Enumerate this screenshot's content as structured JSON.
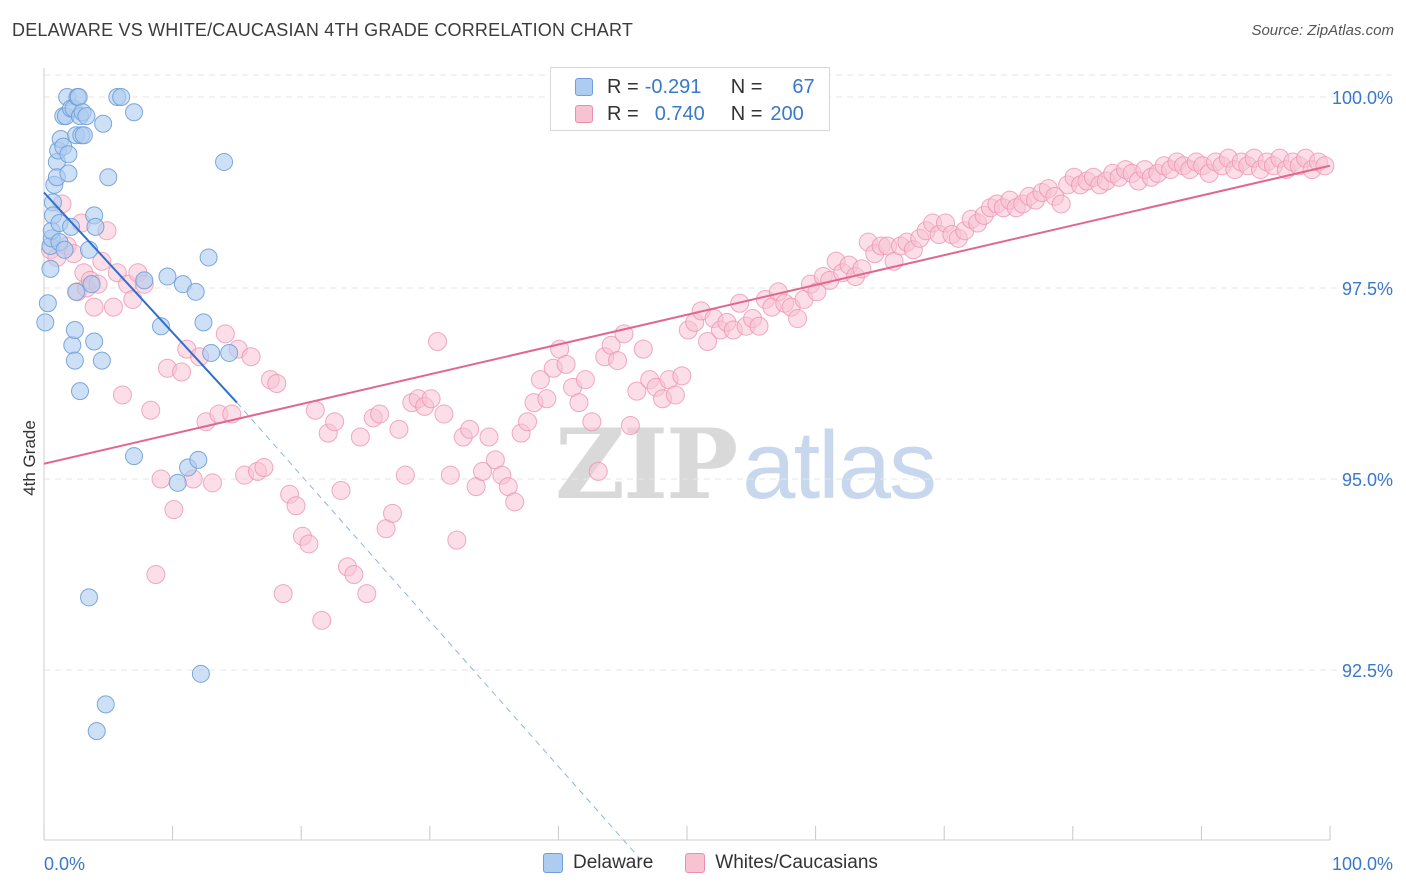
{
  "title": "DELAWARE VS WHITE/CAUCASIAN 4TH GRADE CORRELATION CHART",
  "source": "Source: ZipAtlas.com",
  "watermark": {
    "zip": "ZIP",
    "atlas": "atlas"
  },
  "legend": {
    "rows": [
      {
        "r_label": "R =",
        "r_value": "-0.291",
        "n_label": "N =",
        "n_value": "67",
        "fill": "#aecbf0",
        "stroke": "#6f9fd8"
      },
      {
        "r_label": "R =",
        "r_value": "0.740",
        "n_label": "N = ",
        "n_value": "200",
        "fill": "#f7c3d3",
        "stroke": "#ec8fad"
      }
    ]
  },
  "bottom_legend": [
    {
      "label": "Delaware",
      "fill": "#aecbf0",
      "stroke": "#6f9fd8"
    },
    {
      "label": "Whites/Caucasians",
      "fill": "#f7c3d3",
      "stroke": "#ec8fad"
    }
  ],
  "chart_data": {
    "type": "scatter",
    "title": "DELAWARE VS WHITE/CAUCASIAN 4TH GRADE CORRELATION CHART",
    "xlabel": "",
    "ylabel": "4th Grade",
    "xlim": [
      0,
      100
    ],
    "ylim": [
      90.0,
      100.2
    ],
    "x_tick_labels": [
      "0.0%",
      "100.0%"
    ],
    "y_ticks": [
      100.0,
      97.5,
      95.0,
      92.5
    ],
    "y_tick_labels": [
      "100.0%",
      "97.5%",
      "95.0%",
      "92.5%"
    ],
    "grid": true,
    "colors": {
      "delaware": "#6f9fd8",
      "delaware_fill": "#aecbf0",
      "delaware_line": "#2f6fce",
      "whites": "#ec8fad",
      "whites_fill": "#f7c3d3",
      "whites_line": "#e0688f",
      "tick_label": "#3a78c9"
    },
    "series": [
      {
        "name": "Delaware",
        "r": -0.291,
        "n": 67,
        "trend": {
          "x": [
            0,
            15
          ],
          "y": [
            98.75,
            96.0
          ]
        },
        "trend_extension": {
          "x": [
            15,
            46.5
          ],
          "y": [
            96.0,
            90.0
          ]
        },
        "points": [
          [
            0.1,
            97.05
          ],
          [
            0.3,
            97.3
          ],
          [
            0.5,
            97.75
          ],
          [
            0.5,
            98.05
          ],
          [
            0.6,
            98.15
          ],
          [
            0.6,
            98.25
          ],
          [
            0.7,
            98.62
          ],
          [
            0.7,
            98.45
          ],
          [
            0.8,
            98.85
          ],
          [
            1.0,
            99.15
          ],
          [
            1.0,
            98.95
          ],
          [
            1.1,
            99.3
          ],
          [
            1.2,
            98.35
          ],
          [
            1.2,
            98.1
          ],
          [
            1.3,
            99.45
          ],
          [
            1.5,
            99.35
          ],
          [
            1.5,
            99.75
          ],
          [
            1.6,
            98.0
          ],
          [
            1.9,
            99.0
          ],
          [
            1.8,
            100.0
          ],
          [
            1.7,
            99.75
          ],
          [
            1.9,
            99.25
          ],
          [
            2.1,
            99.85
          ],
          [
            2.1,
            98.3
          ],
          [
            2.3,
            99.85
          ],
          [
            2.2,
            96.75
          ],
          [
            2.4,
            96.55
          ],
          [
            2.4,
            96.95
          ],
          [
            2.5,
            97.45
          ],
          [
            2.6,
            100.0
          ],
          [
            2.5,
            99.5
          ],
          [
            2.7,
            100.0
          ],
          [
            2.8,
            99.75
          ],
          [
            2.9,
            99.5
          ],
          [
            3.0,
            99.8
          ],
          [
            2.8,
            96.15
          ],
          [
            3.1,
            99.5
          ],
          [
            3.3,
            99.75
          ],
          [
            3.5,
            98.0
          ],
          [
            3.7,
            97.55
          ],
          [
            3.5,
            93.45
          ],
          [
            3.9,
            96.8
          ],
          [
            3.9,
            98.45
          ],
          [
            4.0,
            98.3
          ],
          [
            4.1,
            91.7
          ],
          [
            4.5,
            96.55
          ],
          [
            4.8,
            92.05
          ],
          [
            4.6,
            99.65
          ],
          [
            5.0,
            98.95
          ],
          [
            5.7,
            100.0
          ],
          [
            6.0,
            100.0
          ],
          [
            7.0,
            99.8
          ],
          [
            7.0,
            95.3
          ],
          [
            7.8,
            97.6
          ],
          [
            9.1,
            97.0
          ],
          [
            9.6,
            97.65
          ],
          [
            10.4,
            94.95
          ],
          [
            10.8,
            97.55
          ],
          [
            11.2,
            95.15
          ],
          [
            11.8,
            97.45
          ],
          [
            12.0,
            95.25
          ],
          [
            12.2,
            92.45
          ],
          [
            12.4,
            97.05
          ],
          [
            13.0,
            96.65
          ],
          [
            12.8,
            97.9
          ],
          [
            14.0,
            99.15
          ],
          [
            14.4,
            96.65
          ]
        ]
      },
      {
        "name": "Whites/Caucasians",
        "r": 0.74,
        "n": 200,
        "trend": {
          "x": [
            0,
            100
          ],
          "y": [
            95.2,
            99.1
          ]
        },
        "points": [
          [
            0.5,
            98.0
          ],
          [
            1.0,
            97.9
          ],
          [
            1.4,
            98.6
          ],
          [
            1.8,
            98.05
          ],
          [
            2.3,
            97.95
          ],
          [
            2.6,
            97.45
          ],
          [
            2.9,
            98.35
          ],
          [
            3.1,
            97.7
          ],
          [
            3.3,
            97.5
          ],
          [
            3.6,
            97.6
          ],
          [
            3.9,
            97.25
          ],
          [
            4.2,
            97.55
          ],
          [
            4.5,
            97.85
          ],
          [
            4.9,
            98.25
          ],
          [
            5.4,
            97.25
          ],
          [
            5.7,
            97.7
          ],
          [
            6.1,
            96.1
          ],
          [
            6.5,
            97.55
          ],
          [
            6.9,
            97.35
          ],
          [
            7.3,
            97.7
          ],
          [
            7.8,
            97.55
          ],
          [
            8.3,
            95.9
          ],
          [
            8.7,
            93.75
          ],
          [
            9.1,
            95.0
          ],
          [
            9.6,
            96.45
          ],
          [
            10.1,
            94.6
          ],
          [
            10.7,
            96.4
          ],
          [
            11.1,
            96.7
          ],
          [
            11.6,
            95.0
          ],
          [
            12.1,
            96.6
          ],
          [
            12.6,
            95.75
          ],
          [
            13.1,
            94.95
          ],
          [
            13.6,
            95.85
          ],
          [
            14.1,
            96.9
          ],
          [
            14.6,
            95.85
          ],
          [
            15.1,
            96.7
          ],
          [
            15.6,
            95.05
          ],
          [
            16.1,
            96.6
          ],
          [
            16.6,
            95.1
          ],
          [
            17.1,
            95.15
          ],
          [
            17.6,
            96.3
          ],
          [
            18.1,
            96.25
          ],
          [
            18.6,
            93.5
          ],
          [
            19.1,
            94.8
          ],
          [
            19.6,
            94.65
          ],
          [
            20.1,
            94.25
          ],
          [
            20.6,
            94.15
          ],
          [
            21.1,
            95.9
          ],
          [
            21.6,
            93.15
          ],
          [
            22.1,
            95.6
          ],
          [
            22.6,
            95.75
          ],
          [
            23.1,
            94.85
          ],
          [
            23.6,
            93.85
          ],
          [
            24.1,
            93.75
          ],
          [
            24.6,
            95.55
          ],
          [
            25.1,
            93.5
          ],
          [
            25.6,
            95.8
          ],
          [
            26.1,
            95.85
          ],
          [
            26.6,
            94.35
          ],
          [
            27.1,
            94.55
          ],
          [
            27.6,
            95.65
          ],
          [
            28.1,
            95.05
          ],
          [
            28.6,
            96.0
          ],
          [
            29.1,
            96.05
          ],
          [
            29.6,
            95.95
          ],
          [
            30.1,
            96.05
          ],
          [
            30.6,
            96.8
          ],
          [
            31.1,
            95.85
          ],
          [
            31.6,
            95.05
          ],
          [
            32.1,
            94.2
          ],
          [
            32.6,
            95.55
          ],
          [
            33.1,
            95.65
          ],
          [
            33.6,
            94.9
          ],
          [
            34.1,
            95.1
          ],
          [
            34.6,
            95.55
          ],
          [
            35.1,
            95.25
          ],
          [
            35.6,
            95.05
          ],
          [
            36.1,
            94.9
          ],
          [
            36.6,
            94.7
          ],
          [
            37.1,
            95.6
          ],
          [
            37.6,
            95.75
          ],
          [
            38.1,
            96.0
          ],
          [
            38.6,
            96.3
          ],
          [
            39.1,
            96.05
          ],
          [
            39.6,
            96.45
          ],
          [
            40.1,
            96.7
          ],
          [
            40.6,
            96.5
          ],
          [
            41.1,
            96.2
          ],
          [
            41.6,
            96.0
          ],
          [
            42.1,
            96.3
          ],
          [
            42.6,
            95.75
          ],
          [
            43.1,
            95.1
          ],
          [
            43.6,
            96.6
          ],
          [
            44.1,
            96.75
          ],
          [
            44.6,
            96.55
          ],
          [
            45.1,
            96.9
          ],
          [
            45.6,
            95.7
          ],
          [
            46.1,
            96.15
          ],
          [
            46.6,
            96.7
          ],
          [
            47.1,
            96.3
          ],
          [
            47.6,
            96.2
          ],
          [
            48.1,
            96.05
          ],
          [
            48.6,
            96.3
          ],
          [
            49.1,
            96.1
          ],
          [
            49.6,
            96.35
          ],
          [
            50.1,
            96.95
          ],
          [
            50.6,
            97.05
          ],
          [
            51.1,
            97.2
          ],
          [
            51.6,
            96.8
          ],
          [
            52.1,
            97.1
          ],
          [
            52.6,
            96.95
          ],
          [
            53.1,
            97.05
          ],
          [
            53.6,
            96.95
          ],
          [
            54.1,
            97.3
          ],
          [
            54.6,
            97.0
          ],
          [
            55.1,
            97.1
          ],
          [
            55.6,
            97.0
          ],
          [
            56.1,
            97.35
          ],
          [
            56.6,
            97.25
          ],
          [
            57.1,
            97.45
          ],
          [
            57.6,
            97.3
          ],
          [
            58.1,
            97.25
          ],
          [
            58.6,
            97.1
          ],
          [
            59.1,
            97.35
          ],
          [
            59.6,
            97.55
          ],
          [
            60.1,
            97.45
          ],
          [
            60.6,
            97.65
          ],
          [
            61.1,
            97.6
          ],
          [
            61.6,
            97.85
          ],
          [
            62.1,
            97.7
          ],
          [
            62.6,
            97.8
          ],
          [
            63.1,
            97.65
          ],
          [
            63.6,
            97.75
          ],
          [
            64.1,
            98.1
          ],
          [
            64.6,
            97.95
          ],
          [
            65.1,
            98.05
          ],
          [
            65.6,
            98.05
          ],
          [
            66.1,
            97.85
          ],
          [
            66.6,
            98.05
          ],
          [
            67.1,
            98.1
          ],
          [
            67.6,
            98.0
          ],
          [
            68.1,
            98.15
          ],
          [
            68.6,
            98.25
          ],
          [
            69.1,
            98.35
          ],
          [
            69.6,
            98.2
          ],
          [
            70.1,
            98.35
          ],
          [
            70.6,
            98.2
          ],
          [
            71.1,
            98.15
          ],
          [
            71.6,
            98.25
          ],
          [
            72.1,
            98.4
          ],
          [
            72.6,
            98.35
          ],
          [
            73.1,
            98.45
          ],
          [
            73.6,
            98.55
          ],
          [
            74.1,
            98.6
          ],
          [
            74.6,
            98.55
          ],
          [
            75.1,
            98.65
          ],
          [
            75.6,
            98.55
          ],
          [
            76.1,
            98.6
          ],
          [
            76.6,
            98.7
          ],
          [
            77.1,
            98.65
          ],
          [
            77.6,
            98.75
          ],
          [
            78.1,
            98.8
          ],
          [
            78.6,
            98.7
          ],
          [
            79.1,
            98.6
          ],
          [
            79.6,
            98.85
          ],
          [
            80.1,
            98.95
          ],
          [
            80.6,
            98.85
          ],
          [
            81.1,
            98.9
          ],
          [
            81.6,
            98.95
          ],
          [
            82.1,
            98.85
          ],
          [
            82.6,
            98.9
          ],
          [
            83.1,
            99.0
          ],
          [
            83.6,
            98.95
          ],
          [
            84.1,
            99.05
          ],
          [
            84.6,
            99.0
          ],
          [
            85.1,
            98.9
          ],
          [
            85.6,
            99.05
          ],
          [
            86.1,
            98.95
          ],
          [
            86.6,
            99.0
          ],
          [
            87.1,
            99.1
          ],
          [
            87.6,
            99.05
          ],
          [
            88.1,
            99.15
          ],
          [
            88.6,
            99.1
          ],
          [
            89.1,
            99.05
          ],
          [
            89.6,
            99.15
          ],
          [
            90.1,
            99.1
          ],
          [
            90.6,
            99.0
          ],
          [
            91.1,
            99.15
          ],
          [
            91.6,
            99.1
          ],
          [
            92.1,
            99.2
          ],
          [
            92.6,
            99.05
          ],
          [
            93.1,
            99.15
          ],
          [
            93.6,
            99.1
          ],
          [
            94.1,
            99.2
          ],
          [
            94.6,
            99.05
          ],
          [
            95.1,
            99.15
          ],
          [
            95.6,
            99.1
          ],
          [
            96.1,
            99.2
          ],
          [
            96.6,
            99.05
          ],
          [
            97.1,
            99.15
          ],
          [
            97.6,
            99.1
          ],
          [
            98.1,
            99.2
          ],
          [
            98.6,
            99.05
          ],
          [
            99.1,
            99.15
          ],
          [
            99.6,
            99.1
          ]
        ]
      }
    ]
  }
}
